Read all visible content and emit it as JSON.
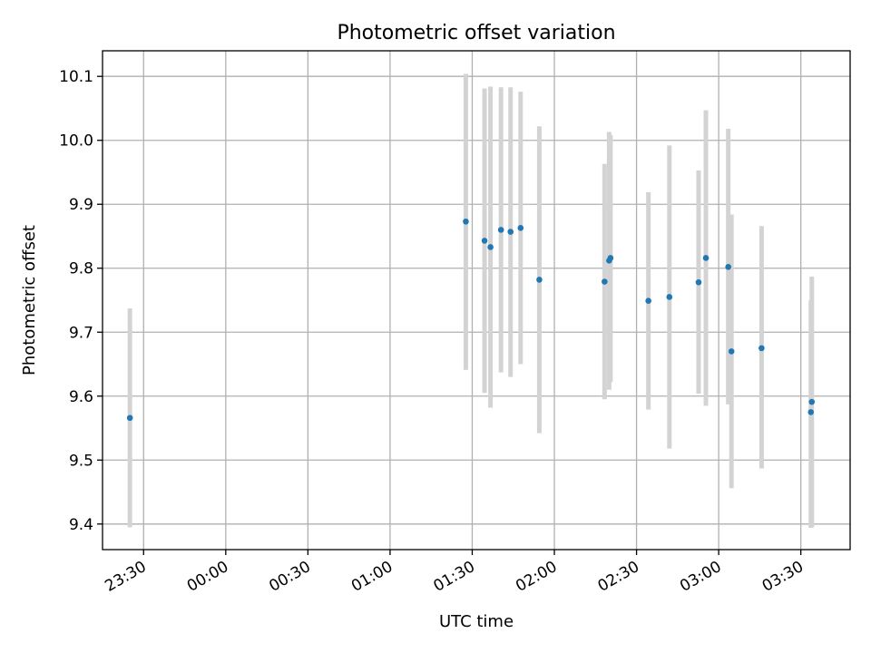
{
  "chart_data": {
    "type": "scatter",
    "title": "Photometric offset variation",
    "xlabel": "UTC time",
    "ylabel": "Photometric offset",
    "x_axis": {
      "kind": "time",
      "start": "2023-01-01T23:15:00",
      "end": "2023-01-02T03:48:00",
      "ticks": [
        {
          "time": "2023-01-01T23:30:00",
          "label": "23:30"
        },
        {
          "time": "2023-01-02T00:00:00",
          "label": "00:00"
        },
        {
          "time": "2023-01-02T00:30:00",
          "label": "00:30"
        },
        {
          "time": "2023-01-02T01:00:00",
          "label": "01:00"
        },
        {
          "time": "2023-01-02T01:30:00",
          "label": "01:30"
        },
        {
          "time": "2023-01-02T02:00:00",
          "label": "02:00"
        },
        {
          "time": "2023-01-02T02:30:00",
          "label": "02:30"
        },
        {
          "time": "2023-01-02T03:00:00",
          "label": "03:00"
        },
        {
          "time": "2023-01-02T03:30:00",
          "label": "03:30"
        }
      ]
    },
    "ylim": [
      9.36,
      10.14
    ],
    "y_ticks": [
      "9.4",
      "9.5",
      "9.6",
      "9.7",
      "9.8",
      "9.9",
      "10.0",
      "10.1"
    ],
    "grid": true,
    "marker_color": "#1f77b4",
    "errorbar_color": "#d3d3d3",
    "points": [
      {
        "x": "2023-01-01T23:25:00",
        "y": 9.566,
        "low": 9.395,
        "high": 9.737
      },
      {
        "x": "2023-01-02T01:27:40",
        "y": 9.873,
        "low": 9.641,
        "high": 10.104
      },
      {
        "x": "2023-01-02T01:34:30",
        "y": 9.843,
        "low": 9.605,
        "high": 10.081
      },
      {
        "x": "2023-01-02T01:36:40",
        "y": 9.833,
        "low": 9.582,
        "high": 10.084
      },
      {
        "x": "2023-01-02T01:40:30",
        "y": 9.86,
        "low": 9.637,
        "high": 10.083
      },
      {
        "x": "2023-01-02T01:44:00",
        "y": 9.857,
        "low": 9.63,
        "high": 10.083
      },
      {
        "x": "2023-01-02T01:47:40",
        "y": 9.863,
        "low": 9.65,
        "high": 10.076
      },
      {
        "x": "2023-01-02T01:54:30",
        "y": 9.782,
        "low": 9.542,
        "high": 10.022
      },
      {
        "x": "2023-01-02T02:18:20",
        "y": 9.779,
        "low": 9.595,
        "high": 9.963
      },
      {
        "x": "2023-01-02T02:20:00",
        "y": 9.812,
        "low": 9.61,
        "high": 10.013
      },
      {
        "x": "2023-01-02T02:20:30",
        "y": 9.816,
        "low": 9.622,
        "high": 10.008
      },
      {
        "x": "2023-01-02T02:34:20",
        "y": 9.749,
        "low": 9.579,
        "high": 9.919
      },
      {
        "x": "2023-01-02T02:42:00",
        "y": 9.755,
        "low": 9.518,
        "high": 9.992
      },
      {
        "x": "2023-01-02T02:52:40",
        "y": 9.778,
        "low": 9.604,
        "high": 9.953
      },
      {
        "x": "2023-01-02T02:55:20",
        "y": 9.816,
        "low": 9.585,
        "high": 10.047
      },
      {
        "x": "2023-01-02T03:03:30",
        "y": 9.802,
        "low": 9.587,
        "high": 10.018
      },
      {
        "x": "2023-01-02T03:04:40",
        "y": 9.67,
        "low": 9.456,
        "high": 9.884
      },
      {
        "x": "2023-01-02T03:15:40",
        "y": 9.675,
        "low": 9.487,
        "high": 9.866
      },
      {
        "x": "2023-01-02T03:33:40",
        "y": 9.575,
        "low": 9.394,
        "high": 9.75
      },
      {
        "x": "2023-01-02T03:34:00",
        "y": 9.591,
        "low": 9.395,
        "high": 9.787
      }
    ]
  }
}
